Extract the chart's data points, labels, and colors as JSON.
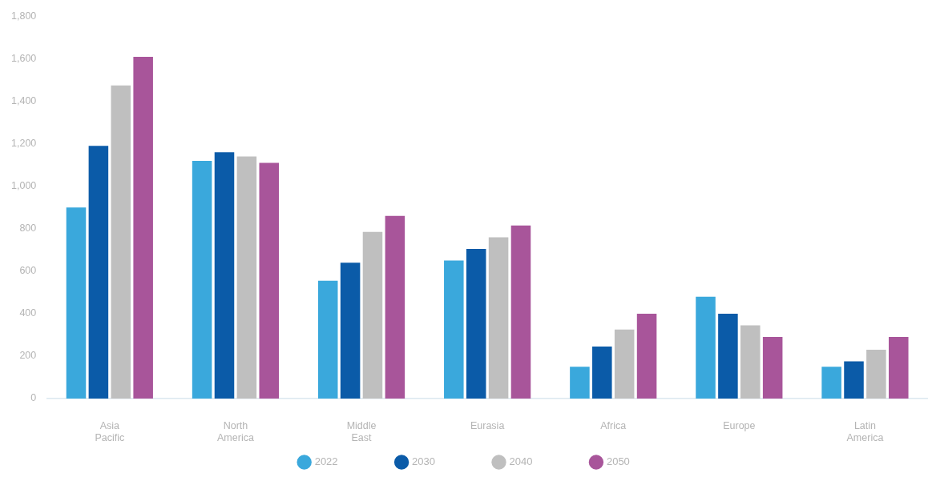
{
  "chart_data": {
    "type": "bar",
    "categories": [
      "Asia Pacific",
      "North America",
      "Middle East",
      "Eurasia",
      "Africa",
      "Europe",
      "Latin America"
    ],
    "series": [
      {
        "name": "2022",
        "color": "#3aa8dc",
        "values": [
          900,
          1120,
          555,
          650,
          150,
          480,
          150
        ]
      },
      {
        "name": "2030",
        "color": "#0b5ba8",
        "values": [
          1190,
          1160,
          640,
          705,
          245,
          400,
          175
        ]
      },
      {
        "name": "2040",
        "color": "#bfbfbf",
        "values": [
          1475,
          1140,
          785,
          760,
          325,
          345,
          230
        ]
      },
      {
        "name": "2050",
        "color": "#a8559a",
        "values": [
          1610,
          1110,
          860,
          815,
          400,
          290,
          290
        ]
      }
    ],
    "ylim": [
      0,
      1800
    ],
    "yticks": [
      0,
      200,
      400,
      600,
      800,
      {
        "value": 1000,
        "label": "1,000"
      },
      {
        "value": 1200,
        "label": "1,200"
      },
      {
        "value": 1400,
        "label": "1,400"
      },
      {
        "value": 1600,
        "label": "1,600"
      },
      {
        "value": 1800,
        "label": "1,800"
      }
    ],
    "grid": false,
    "legend": "bottom"
  }
}
